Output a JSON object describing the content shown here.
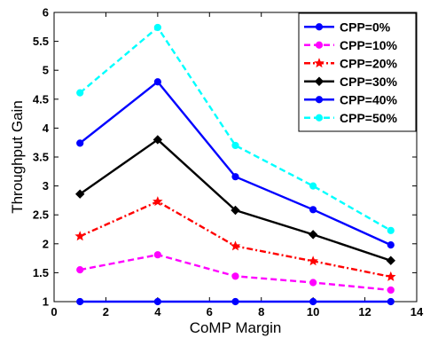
{
  "chart_data": {
    "type": "line",
    "title": "",
    "xlabel": "CoMP Margin",
    "ylabel": "Throughput Gain",
    "xlim": [
      0,
      14
    ],
    "ylim": [
      1,
      6
    ],
    "xticks": [
      0,
      2,
      4,
      6,
      8,
      10,
      12,
      14
    ],
    "yticks": [
      1,
      1.5,
      2,
      2.5,
      3,
      3.5,
      4,
      4.5,
      5,
      5.5,
      6
    ],
    "grid": false,
    "legend_position": "top-right",
    "x": [
      1,
      4,
      7,
      10,
      13
    ],
    "series": [
      {
        "name": "CPP=0%",
        "values": [
          1.0,
          1.0,
          1.0,
          1.0,
          1.0
        ],
        "color": "#0000ff",
        "dash": "solid",
        "marker": "circle"
      },
      {
        "name": "CPP=10%",
        "values": [
          1.55,
          1.81,
          1.44,
          1.33,
          1.2
        ],
        "color": "#ff00ff",
        "dash": "dashed",
        "marker": "circle"
      },
      {
        "name": "CPP=20%",
        "values": [
          2.13,
          2.73,
          1.96,
          1.7,
          1.43
        ],
        "color": "#ff0000",
        "dash": "dashdot",
        "marker": "star"
      },
      {
        "name": "CPP=30%",
        "values": [
          2.86,
          3.8,
          2.58,
          2.16,
          1.71
        ],
        "color": "#000000",
        "dash": "solid",
        "marker": "diamond"
      },
      {
        "name": "CPP=40%",
        "values": [
          3.74,
          4.8,
          3.16,
          2.59,
          1.98
        ],
        "color": "#0000ff",
        "dash": "solid",
        "marker": "circle"
      },
      {
        "name": "CPP=50%",
        "values": [
          4.61,
          5.74,
          3.7,
          3.0,
          2.23
        ],
        "color": "#00ffff",
        "dash": "dashed",
        "marker": "circle"
      }
    ]
  }
}
